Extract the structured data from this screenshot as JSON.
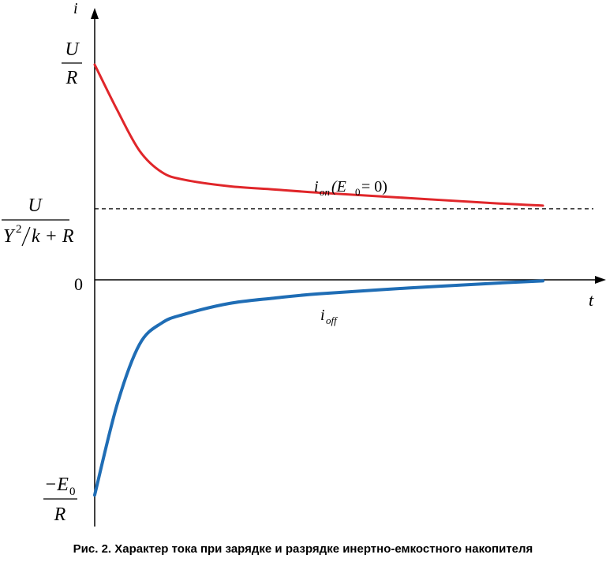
{
  "chart_data": {
    "type": "line",
    "title": "",
    "xlabel": "t",
    "ylabel": "i",
    "y_ticks": {
      "u_over_r": {
        "num": "U",
        "den": "R"
      },
      "asymptote": {
        "num": "U",
        "den_base": "Y",
        "den_sup": "2",
        "den_rest": "k + R"
      },
      "zero": "0",
      "neg_e0_over_r": {
        "num_prefix": "−E",
        "num_sub": "0",
        "den": "R"
      }
    },
    "series": [
      {
        "name": "i_on (E0 = 0)",
        "label": {
          "base": "i",
          "sub": "on",
          "rest_open": " (E",
          "rest_sub": "0",
          "rest_close": " = 0)"
        },
        "color": "#e0262a",
        "x": [
          0,
          0.05,
          0.1,
          0.15,
          0.2,
          0.3,
          0.4,
          0.5,
          0.7,
          0.9,
          1.0
        ],
        "y": [
          1.0,
          0.79,
          0.6,
          0.5,
          0.465,
          0.435,
          0.42,
          0.405,
          0.38,
          0.355,
          0.345
        ]
      },
      {
        "name": "i_off",
        "label": {
          "base": "i",
          "sub": "off"
        },
        "color": "#1f6db5",
        "x": [
          0,
          0.05,
          0.1,
          0.15,
          0.2,
          0.3,
          0.4,
          0.5,
          0.7,
          0.9,
          1.0
        ],
        "y": [
          -1.0,
          -0.58,
          -0.3,
          -0.2,
          -0.16,
          -0.11,
          -0.085,
          -0.065,
          -0.038,
          -0.015,
          -0.005
        ]
      }
    ],
    "asymptote_value": 0.33,
    "ylim": [
      -1.15,
      1.28
    ],
    "xlim": [
      0,
      1.1
    ],
    "grid": false
  },
  "caption": "Рис. 2. Характер тока при зарядке и разрядке инертно-емкостного накопителя"
}
